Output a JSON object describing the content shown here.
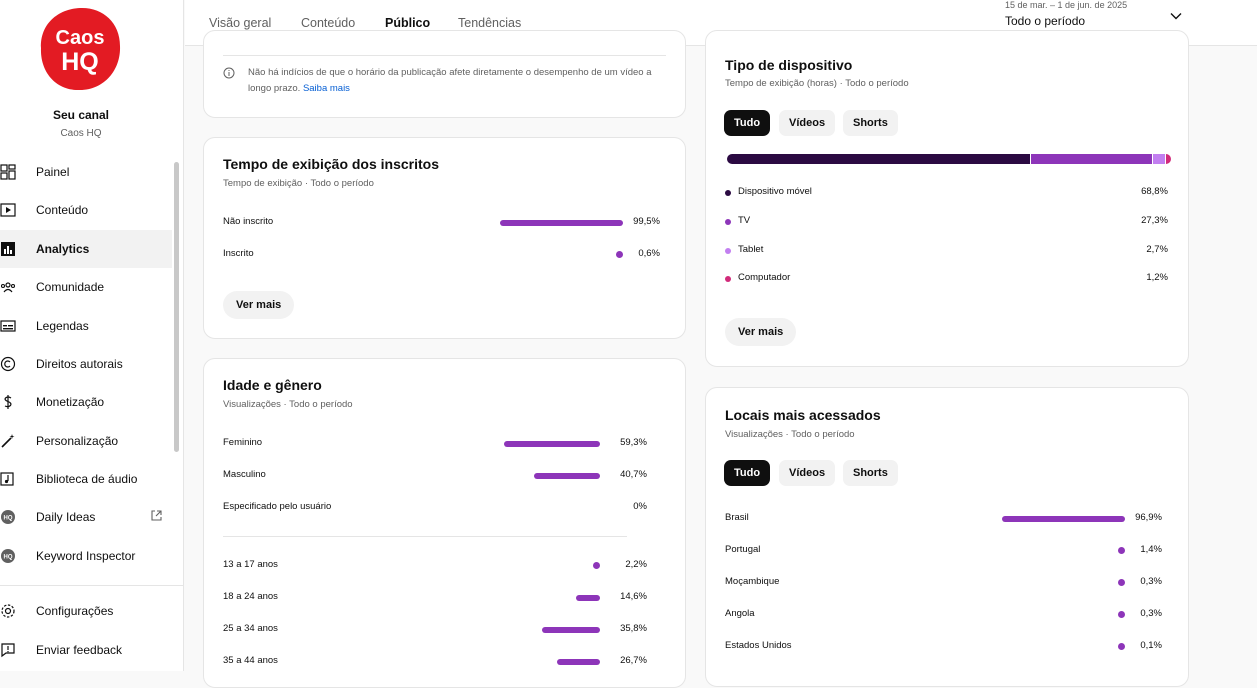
{
  "sidebar": {
    "channel_name": "Seu canal",
    "channel_handle": "Caos HQ",
    "logo_line1": "Caos",
    "logo_line2": "HQ",
    "items": [
      {
        "label": "Painel",
        "icon": "dashboard-icon"
      },
      {
        "label": "Conteúdo",
        "icon": "content-icon"
      },
      {
        "label": "Analytics",
        "icon": "analytics-icon"
      },
      {
        "label": "Comunidade",
        "icon": "community-icon"
      },
      {
        "label": "Legendas",
        "icon": "subtitles-icon"
      },
      {
        "label": "Direitos autorais",
        "icon": "copyright-icon"
      },
      {
        "label": "Monetização",
        "icon": "dollar-icon"
      },
      {
        "label": "Personalização",
        "icon": "magic-wand-icon"
      },
      {
        "label": "Biblioteca de áudio",
        "icon": "audio-library-icon"
      },
      {
        "label": "Daily Ideas",
        "icon": "daily-ideas-icon"
      },
      {
        "label": "Keyword Inspector",
        "icon": "keyword-icon"
      }
    ],
    "bottom": [
      {
        "label": "Configurações",
        "icon": "gear-icon"
      },
      {
        "label": "Enviar feedback",
        "icon": "feedback-icon"
      }
    ]
  },
  "tabs": [
    "Visão geral",
    "Conteúdo",
    "Público",
    "Tendências"
  ],
  "date": {
    "range": "15 de mar. – 1 de jun. de 2025",
    "label": "Todo o período"
  },
  "info": {
    "text": "Não há indícios de que o horário da publicação afete diretamente o desempenho de um vídeo a longo prazo.",
    "link": "Saiba mais"
  },
  "subs_card": {
    "title": "Tempo de exibição dos inscritos",
    "subtitle": "Tempo de exibição · Todo o período",
    "rows": [
      {
        "label": "Não inscrito",
        "value": "99,5%",
        "pct": 99.5
      },
      {
        "label": "Inscrito",
        "value": "0,6%",
        "pct": 0.6
      }
    ],
    "more": "Ver mais"
  },
  "age_card": {
    "title": "Idade e gênero",
    "subtitle": "Visualizações · Todo o período",
    "gender": [
      {
        "label": "Feminino",
        "value": "59,3%",
        "pct": 59.3
      },
      {
        "label": "Masculino",
        "value": "40,7%",
        "pct": 40.7
      },
      {
        "label": "Especificado pelo usuário",
        "value": "0%",
        "pct": 0
      }
    ],
    "ages": [
      {
        "label": "13 a 17 anos",
        "value": "2,2%",
        "pct": 2.2
      },
      {
        "label": "18 a 24 anos",
        "value": "14,6%",
        "pct": 14.6
      },
      {
        "label": "25 a 34 anos",
        "value": "35,8%",
        "pct": 35.8
      },
      {
        "label": "35 a 44 anos",
        "value": "26,7%",
        "pct": 26.7
      }
    ]
  },
  "device_card": {
    "title": "Tipo de dispositivo",
    "subtitle": "Tempo de exibição (horas) · Todo o período",
    "chips": [
      "Tudo",
      "Vídeos",
      "Shorts"
    ],
    "devices": [
      {
        "label": "Dispositivo móvel",
        "value": "68,8%",
        "pct": 68.8,
        "color": "#2b0a42"
      },
      {
        "label": "TV",
        "value": "27,3%",
        "pct": 27.3,
        "color": "#8d35b9"
      },
      {
        "label": "Tablet",
        "value": "2,7%",
        "pct": 2.7,
        "color": "#c27ff0"
      },
      {
        "label": "Computador",
        "value": "1,2%",
        "pct": 1.2,
        "color": "#d12a7a"
      }
    ],
    "more": "Ver mais"
  },
  "geo_card": {
    "title": "Locais mais acessados",
    "subtitle": "Visualizações · Todo o período",
    "chips": [
      "Tudo",
      "Vídeos",
      "Shorts"
    ],
    "rows": [
      {
        "label": "Brasil",
        "value": "96,9%",
        "pct": 96.9
      },
      {
        "label": "Portugal",
        "value": "1,4%",
        "pct": 1.4
      },
      {
        "label": "Moçambique",
        "value": "0,3%",
        "pct": 0.3
      },
      {
        "label": "Angola",
        "value": "0,3%",
        "pct": 0.3
      },
      {
        "label": "Estados Unidos",
        "value": "0,1%",
        "pct": 0.1
      }
    ]
  }
}
